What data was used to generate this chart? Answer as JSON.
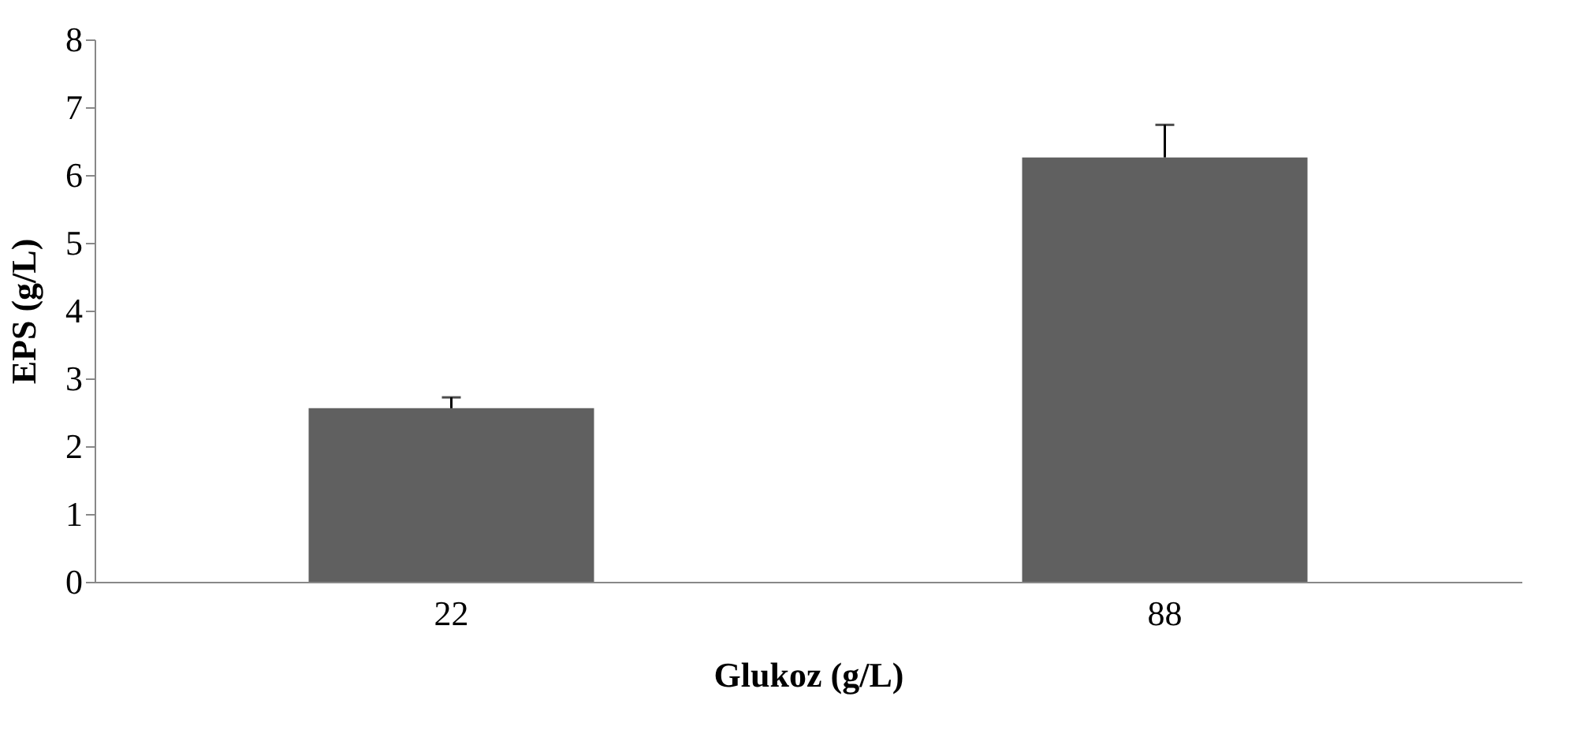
{
  "chart_data": {
    "type": "bar",
    "xlabel": "Glukoz (g/L)",
    "ylabel": "EPS (g/L)",
    "categories": [
      "22",
      "88"
    ],
    "series": [
      {
        "color": "#606060",
        "values": [
          2.56,
          6.26
        ],
        "errors": [
          [
            2.56,
            2.72
          ],
          [
            6.26,
            6.74
          ]
        ]
      }
    ],
    "ylim": [
      0,
      8
    ],
    "yticks": [
      0,
      1,
      2,
      3,
      4,
      5,
      6,
      7,
      8
    ],
    "grid": false
  }
}
